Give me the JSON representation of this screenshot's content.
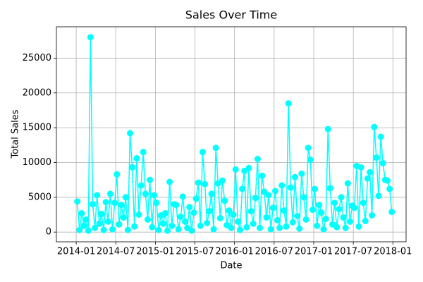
{
  "chart_data": {
    "type": "line",
    "title": "Sales Over Time",
    "x_label": "Date",
    "y_label": "Total Sales",
    "x": [
      "2014-01",
      "2014-01",
      "2014-01",
      "2014-02",
      "2014-02",
      "2014-02",
      "2014-03",
      "2014-03",
      "2014-03",
      "2014-04",
      "2014-04",
      "2014-04",
      "2014-05",
      "2014-05",
      "2014-05",
      "2014-06",
      "2014-06",
      "2014-06",
      "2014-07",
      "2014-07",
      "2014-07",
      "2014-08",
      "2014-08",
      "2014-08",
      "2014-09",
      "2014-09",
      "2014-09",
      "2014-10",
      "2014-10",
      "2014-10",
      "2014-11",
      "2014-11",
      "2014-11",
      "2014-12",
      "2014-12",
      "2014-12",
      "2015-01",
      "2015-01",
      "2015-01",
      "2015-02",
      "2015-02",
      "2015-02",
      "2015-03",
      "2015-03",
      "2015-03",
      "2015-04",
      "2015-04",
      "2015-04",
      "2015-05",
      "2015-05",
      "2015-05",
      "2015-06",
      "2015-06",
      "2015-06",
      "2015-07",
      "2015-07",
      "2015-07",
      "2015-08",
      "2015-08",
      "2015-08",
      "2015-09",
      "2015-09",
      "2015-09",
      "2015-10",
      "2015-10",
      "2015-10",
      "2015-11",
      "2015-11",
      "2015-11",
      "2015-12",
      "2015-12",
      "2015-12",
      "2016-01",
      "2016-01",
      "2016-01",
      "2016-02",
      "2016-02",
      "2016-02",
      "2016-03",
      "2016-03",
      "2016-03",
      "2016-04",
      "2016-04",
      "2016-04",
      "2016-05",
      "2016-05",
      "2016-05",
      "2016-06",
      "2016-06",
      "2016-06",
      "2016-07",
      "2016-07",
      "2016-07",
      "2016-08",
      "2016-08",
      "2016-08",
      "2016-09",
      "2016-09",
      "2016-09",
      "2016-10",
      "2016-10",
      "2016-10",
      "2016-11",
      "2016-11",
      "2016-11",
      "2016-12",
      "2016-12",
      "2016-12",
      "2017-01",
      "2017-01",
      "2017-01",
      "2017-02",
      "2017-02",
      "2017-02",
      "2017-03",
      "2017-03",
      "2017-03",
      "2017-04",
      "2017-04",
      "2017-04",
      "2017-05",
      "2017-05",
      "2017-05",
      "2017-06",
      "2017-06",
      "2017-06",
      "2017-07",
      "2017-07",
      "2017-07",
      "2017-08",
      "2017-08",
      "2017-08",
      "2017-09",
      "2017-09",
      "2017-09",
      "2017-10",
      "2017-10",
      "2017-10",
      "2017-11",
      "2017-11",
      "2017-11",
      "2017-12",
      "2017-12",
      "2017-12"
    ],
    "series": [
      {
        "color": "#00ffff",
        "values": [
          4400,
          300,
          2700,
          900,
          1800,
          200,
          28000,
          4000,
          600,
          5300,
          1200,
          2600,
          300,
          4300,
          1500,
          5500,
          400,
          4200,
          8300,
          1100,
          3900,
          2100,
          5000,
          300,
          14200,
          9300,
          800,
          10600,
          2500,
          6700,
          11500,
          5500,
          1800,
          7500,
          700,
          5300,
          4200,
          300,
          2400,
          1200,
          2700,
          200,
          7200,
          900,
          4000,
          3900,
          400,
          2200,
          5100,
          1500,
          600,
          3600,
          200,
          2800,
          4800,
          7100,
          900,
          11500,
          6900,
          1300,
          3000,
          5500,
          400,
          12100,
          7000,
          2000,
          7400,
          4500,
          1000,
          3100,
          600,
          2500,
          9000,
          1500,
          300,
          6200,
          8800,
          700,
          9200,
          3000,
          1200,
          4900,
          10500,
          600,
          8100,
          5800,
          2100,
          5300,
          400,
          3500,
          5900,
          1700,
          600,
          6700,
          3100,
          800,
          18500,
          6400,
          1400,
          7900,
          2300,
          500,
          8400,
          5000,
          1800,
          12100,
          10400,
          3200,
          6200,
          900,
          3900,
          2800,
          400,
          1900,
          14800,
          6300,
          1100,
          4200,
          700,
          3300,
          5000,
          2100,
          600,
          7000,
          1500,
          3800,
          3500,
          9500,
          800,
          9300,
          4200,
          1600,
          7700,
          8600,
          2400,
          15100,
          10700,
          5200,
          13700,
          9900,
          7500,
          7400,
          6200,
          2900
        ]
      }
    ],
    "xlim": [
      "2013-10",
      "2018-03"
    ],
    "xticks": [
      "2014-01",
      "2014-07",
      "2015-01",
      "2015-07",
      "2016-01",
      "2016-07",
      "2017-01",
      "2017-07",
      "2018-01"
    ],
    "ylim": [
      -1400,
      29500
    ],
    "yticks": [
      0,
      5000,
      10000,
      15000,
      20000,
      25000
    ],
    "grid": true,
    "markers": true
  }
}
